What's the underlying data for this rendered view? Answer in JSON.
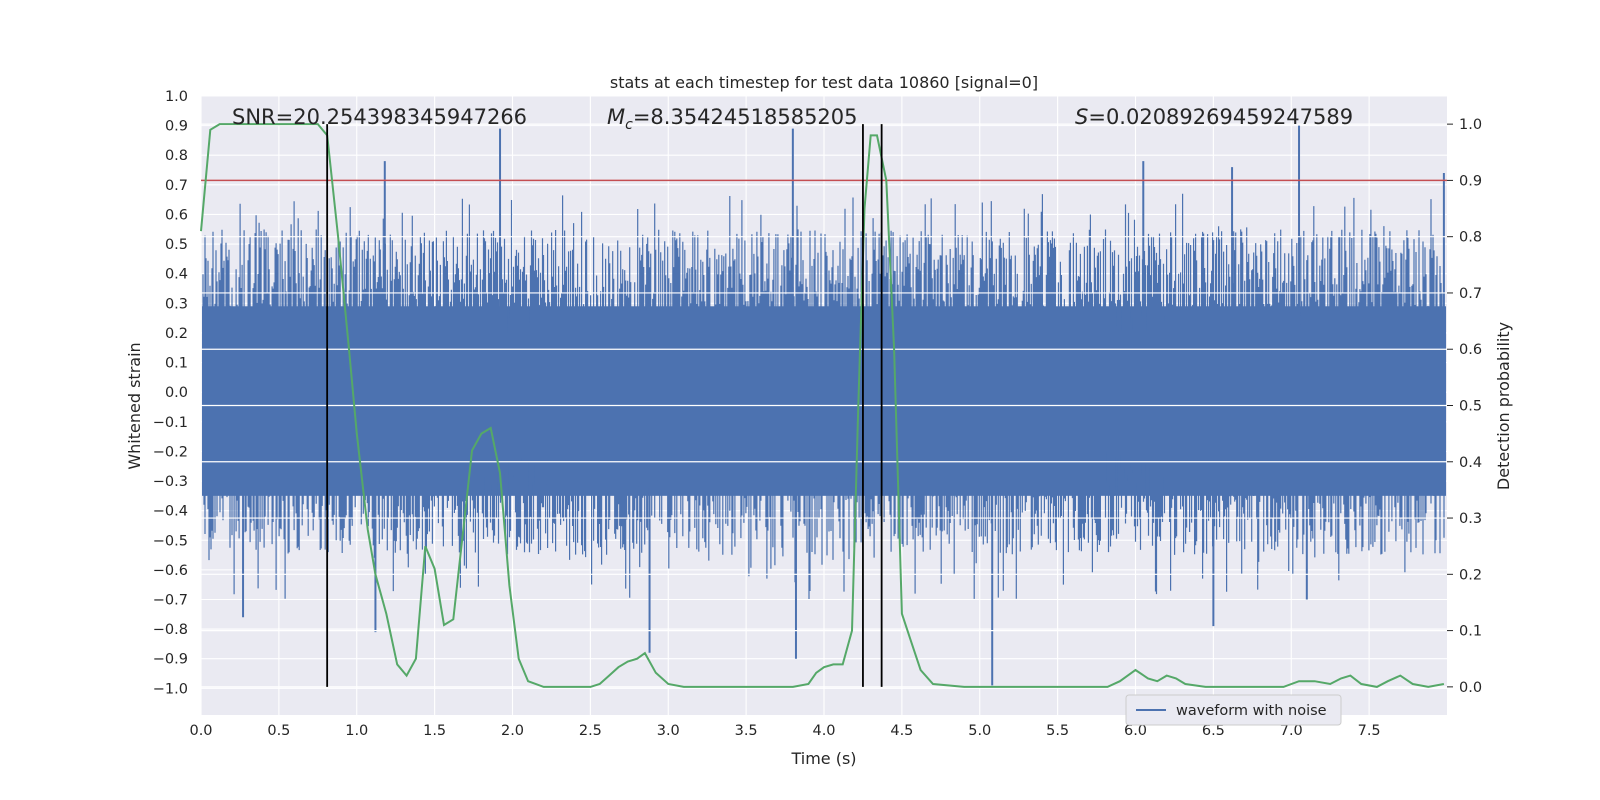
{
  "chart_data": {
    "type": "line",
    "title": "stats at each timestep for test data 10860 [signal=0]",
    "xlabel": "Time (s)",
    "ylabel_left": "Whitened strain",
    "ylabel_right": "Detection probability",
    "xlim": [
      0.0,
      8.0
    ],
    "ylim_left": [
      -1.09,
      1.0
    ],
    "ylim_right": [
      -0.05,
      1.05
    ],
    "x_ticks": [
      "0.0",
      "0.5",
      "1.0",
      "1.5",
      "2.0",
      "2.5",
      "3.0",
      "3.5",
      "4.0",
      "4.5",
      "5.0",
      "5.5",
      "6.0",
      "6.5",
      "7.0",
      "7.5"
    ],
    "y_left_ticks": [
      "1.0",
      "0.9",
      "0.8",
      "0.7",
      "0.6",
      "0.5",
      "0.4",
      "0.3",
      "0.2",
      "0.1",
      "0.0",
      "−0.1",
      "−0.2",
      "−0.3",
      "−0.4",
      "−0.5",
      "−0.6",
      "−0.7",
      "−0.8",
      "−0.9",
      "−1.0"
    ],
    "y_right_ticks": [
      "1.0",
      "0.9",
      "0.8",
      "0.7",
      "0.6",
      "0.5",
      "0.4",
      "0.3",
      "0.2",
      "0.1",
      "0.0"
    ],
    "grid": true,
    "legend_position": "lower-right",
    "annotations": {
      "snr": "SNR=20.254398345947266",
      "mc_symbol": "M",
      "mc_subscript": "c",
      "mc_value": "=8.35424518585205",
      "s_symbol": "S",
      "s_value": "=0.02089269459247589"
    },
    "threshold": {
      "value": 0.9,
      "axis": "right",
      "color": "#c44e52"
    },
    "vertical_markers": [
      0.81,
      4.25,
      4.37
    ],
    "series": [
      {
        "name": "waveform with noise",
        "axis": "left",
        "color": "#4c72b0",
        "render": "dense-noise-waveform",
        "envelope": {
          "typical_min": -0.55,
          "typical_max": 0.55
        },
        "peaks": [
          {
            "x": 1.92,
            "y": 0.89
          },
          {
            "x": 3.8,
            "y": 0.89
          },
          {
            "x": 7.05,
            "y": 0.9
          },
          {
            "x": 7.98,
            "y": 0.74
          },
          {
            "x": 1.18,
            "y": 0.78
          },
          {
            "x": 6.05,
            "y": 0.78
          },
          {
            "x": 6.62,
            "y": 0.76
          },
          {
            "x": 5.08,
            "y": -0.99
          },
          {
            "x": 3.82,
            "y": -0.9
          },
          {
            "x": 2.88,
            "y": -0.88
          },
          {
            "x": 6.5,
            "y": -0.79
          },
          {
            "x": 0.27,
            "y": -0.76
          },
          {
            "x": 1.12,
            "y": -0.81
          },
          {
            "x": 7.1,
            "y": -0.7
          }
        ]
      },
      {
        "name": "",
        "axis": "right",
        "color": "#55a868",
        "x": [
          0.0,
          0.06,
          0.12,
          0.2,
          0.35,
          0.5,
          0.65,
          0.75,
          0.81,
          0.88,
          0.95,
          1.0,
          1.07,
          1.12,
          1.19,
          1.26,
          1.32,
          1.38,
          1.44,
          1.5,
          1.56,
          1.62,
          1.68,
          1.74,
          1.8,
          1.86,
          1.92,
          1.98,
          2.04,
          2.1,
          2.2,
          2.4,
          2.5,
          2.56,
          2.62,
          2.68,
          2.74,
          2.8,
          2.85,
          2.92,
          3.0,
          3.1,
          3.2,
          3.3,
          3.4,
          3.5,
          3.6,
          3.7,
          3.8,
          3.9,
          3.95,
          4.0,
          4.06,
          4.12,
          4.18,
          4.22,
          4.26,
          4.3,
          4.34,
          4.4,
          4.45,
          4.5,
          4.56,
          4.62,
          4.7,
          4.9,
          5.1,
          5.3,
          5.5,
          5.7,
          5.82,
          5.9,
          6.0,
          6.08,
          6.14,
          6.2,
          6.26,
          6.32,
          6.45,
          6.6,
          6.8,
          6.95,
          7.05,
          7.15,
          7.25,
          7.32,
          7.38,
          7.45,
          7.55,
          7.62,
          7.7,
          7.78,
          7.88,
          7.98
        ],
        "y": [
          0.81,
          0.99,
          1.0,
          1.0,
          1.0,
          1.0,
          1.0,
          1.0,
          0.98,
          0.8,
          0.6,
          0.45,
          0.28,
          0.2,
          0.13,
          0.04,
          0.02,
          0.05,
          0.25,
          0.21,
          0.11,
          0.12,
          0.27,
          0.42,
          0.45,
          0.46,
          0.38,
          0.18,
          0.05,
          0.01,
          0.0,
          0.0,
          0.0,
          0.005,
          0.02,
          0.035,
          0.045,
          0.05,
          0.06,
          0.025,
          0.005,
          0.0,
          0.0,
          0.0,
          0.0,
          0.0,
          0.0,
          0.0,
          0.0,
          0.005,
          0.025,
          0.035,
          0.04,
          0.04,
          0.1,
          0.5,
          0.85,
          0.98,
          0.98,
          0.9,
          0.6,
          0.13,
          0.08,
          0.03,
          0.005,
          0.0,
          0.0,
          0.0,
          0.0,
          0.0,
          0.0,
          0.01,
          0.03,
          0.015,
          0.01,
          0.02,
          0.015,
          0.005,
          0.0,
          0.0,
          0.0,
          0.0,
          0.01,
          0.01,
          0.005,
          0.015,
          0.02,
          0.005,
          0.0,
          0.01,
          0.02,
          0.005,
          0.0,
          0.005
        ]
      }
    ]
  }
}
